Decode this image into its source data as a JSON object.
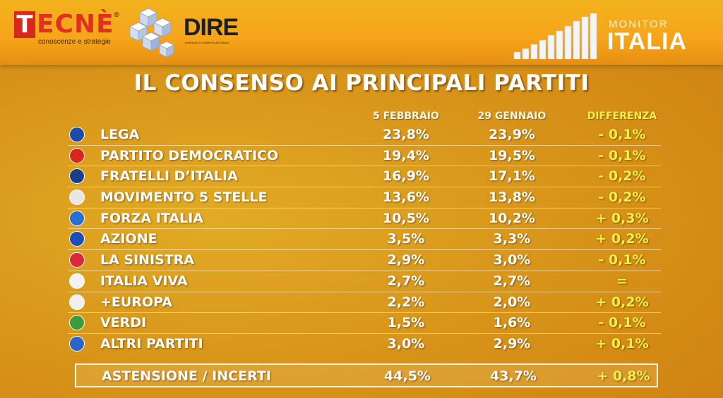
{
  "header": {
    "brand_left_initial": "T",
    "brand_left_rest": "ECNÈ",
    "brand_left_reg": "®",
    "brand_left_tagline": "conoscenze e strategie",
    "brand_mid": "DIRE",
    "brand_mid_tagline": "AGENZIA DI STAMPA NAZIONALE",
    "brand_right_small": "MONITOR",
    "brand_right_big": "ITALIA"
  },
  "colors": {
    "header": "#f6a41a",
    "background": "#d8961a",
    "text": "#ffffff",
    "difference": "#f7f048"
  },
  "chart_data": {
    "type": "table",
    "title": "IL CONSENSO AI PRINCIPALI PARTITI",
    "columns": [
      "5 FEBBRAIO",
      "29 GENNAIO",
      "DIFFERENZA"
    ],
    "rows": [
      {
        "party": "LEGA",
        "logo_color": "#1f4aa8",
        "v1": "23,8%",
        "v2": "23,9%",
        "diff": "- 0,1%"
      },
      {
        "party": "PARTITO DEMOCRATICO",
        "logo_color": "#d8281e",
        "v1": "19,4%",
        "v2": "19,5%",
        "diff": "- 0,1%"
      },
      {
        "party": "FRATELLI D’ITALIA",
        "logo_color": "#1a3f8a",
        "v1": "16,9%",
        "v2": "17,1%",
        "diff": "- 0,2%"
      },
      {
        "party": "MOVIMENTO 5 STELLE",
        "logo_color": "#e7e7e7",
        "v1": "13,6%",
        "v2": "13,8%",
        "diff": "- 0,2%"
      },
      {
        "party": "FORZA ITALIA",
        "logo_color": "#2a6fd0",
        "v1": "10,5%",
        "v2": "10,2%",
        "diff": "+ 0,3%"
      },
      {
        "party": "AZIONE",
        "logo_color": "#1b4fb5",
        "v1": "3,5%",
        "v2": "3,3%",
        "diff": "+ 0,2%"
      },
      {
        "party": "LA SINISTRA",
        "logo_color": "#d8283a",
        "v1": "2,9%",
        "v2": "3,0%",
        "diff": "- 0,1%"
      },
      {
        "party": "ITALIA VIVA",
        "logo_color": "#f2f2f2",
        "v1": "2,7%",
        "v2": "2,7%",
        "diff": "="
      },
      {
        "party": "+EUROPA",
        "logo_color": "#f0f0f0",
        "v1": "2,2%",
        "v2": "2,0%",
        "diff": "+ 0,2%"
      },
      {
        "party": "VERDI",
        "logo_color": "#3d9b3a",
        "v1": "1,5%",
        "v2": "1,6%",
        "diff": "- 0,1%"
      },
      {
        "party": "ALTRI PARTITI",
        "logo_color": "#2b66c7",
        "v1": "3,0%",
        "v2": "2,9%",
        "diff": "+ 0,1%"
      }
    ],
    "summary": {
      "label": "ASTENSIONE / INCERTI",
      "v1": "44,5%",
      "v2": "43,7%",
      "diff": "+ 0,8%"
    }
  }
}
